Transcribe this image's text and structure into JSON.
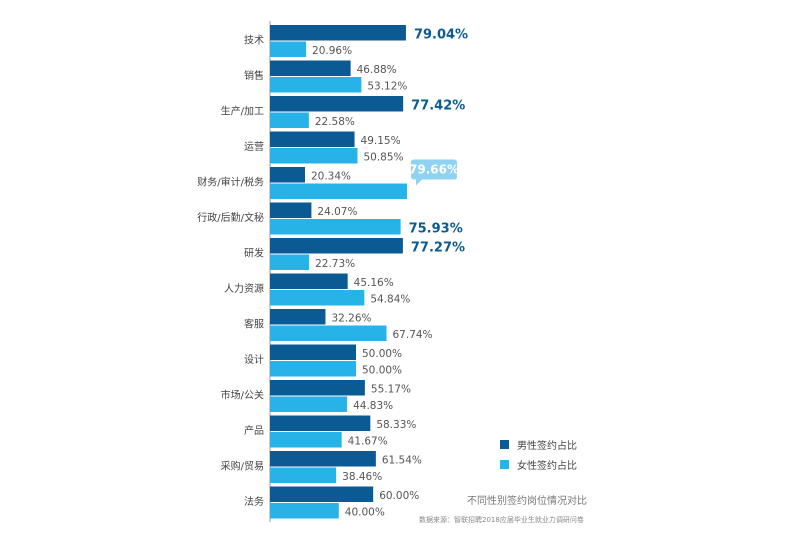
{
  "colors": {
    "male": "#0c5a93",
    "female": "#27b2e8",
    "axis": "#999999"
  },
  "chart_data": {
    "type": "bar",
    "orientation": "horizontal",
    "unit": "%",
    "xlim": [
      0,
      100
    ],
    "categories": [
      "技术",
      "销售",
      "生产/加工",
      "运营",
      "财务/审计/税务",
      "行政/后勤/文秘",
      "研发",
      "人力资源",
      "客服",
      "设计",
      "市场/公关",
      "产品",
      "采购/贸易",
      "法务"
    ],
    "series": [
      {
        "name": "男性签约占比",
        "values": [
          79.04,
          46.88,
          77.42,
          49.15,
          20.34,
          24.07,
          77.27,
          45.16,
          32.26,
          50.0,
          55.17,
          58.33,
          61.54,
          60.0
        ]
      },
      {
        "name": "女性签约占比",
        "values": [
          20.96,
          53.12,
          22.58,
          50.85,
          79.66,
          75.93,
          22.73,
          54.84,
          67.74,
          50.0,
          44.83,
          41.67,
          38.46,
          40.0
        ]
      }
    ],
    "labels": [
      [
        "79.04%",
        "20.96%"
      ],
      [
        "46.88%",
        "53.12%"
      ],
      [
        "77.42%",
        "22.58%"
      ],
      [
        "49.15%",
        "50.85%"
      ],
      [
        "20.34%",
        "79.66%"
      ],
      [
        "24.07%",
        "75.93%"
      ],
      [
        "77.27%",
        "22.73%"
      ],
      [
        "45.16%",
        "54.84%"
      ],
      [
        "32.26%",
        "67.74%"
      ],
      [
        "50.00%",
        "50.00%"
      ],
      [
        "55.17%",
        "44.83%"
      ],
      [
        "58.33%",
        "41.67%"
      ],
      [
        "61.54%",
        "38.46%"
      ],
      [
        "60.00%",
        "40.00%"
      ]
    ],
    "legend_position": "bottom-right",
    "subtitle": "不同性别签约岗位情况对比",
    "source": "数据来源：智联招聘2018应届毕业生就业力调研问卷"
  }
}
